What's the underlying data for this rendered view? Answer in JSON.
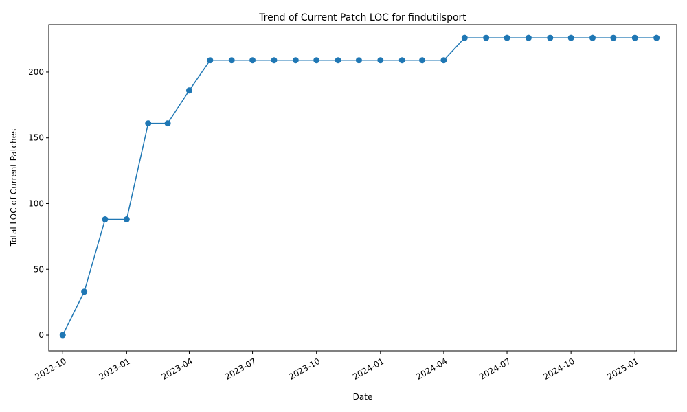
{
  "chart_data": {
    "type": "line",
    "title": "Trend of Current Patch LOC for findutilsport",
    "xlabel": "Date",
    "ylabel": "Total LOC of Current Patches",
    "x_ticks": [
      "2022-10",
      "2023-01",
      "2023-04",
      "2023-07",
      "2023-10",
      "2024-01",
      "2024-04",
      "2024-07",
      "2024-10",
      "2025-01"
    ],
    "y_ticks": [
      "0",
      "50",
      "100",
      "150",
      "200"
    ],
    "ylim": [
      -12,
      236
    ],
    "xlim": [
      "2022-09-11",
      "2025-03-02"
    ],
    "grid": false,
    "color": "#1f77b4",
    "series": [
      {
        "x": [
          "2022-10-01",
          "2022-11-01",
          "2022-12-01",
          "2023-01-01",
          "2023-02-01",
          "2023-03-01",
          "2023-04-01",
          "2023-05-01",
          "2023-06-01",
          "2023-07-01",
          "2023-08-01",
          "2023-09-01",
          "2023-10-01",
          "2023-11-01",
          "2023-12-01",
          "2024-01-01",
          "2024-02-01",
          "2024-03-01",
          "2024-04-01",
          "2024-05-01",
          "2024-06-01",
          "2024-07-01",
          "2024-08-01",
          "2024-09-01",
          "2024-10-01",
          "2024-11-01",
          "2024-12-01",
          "2025-01-01",
          "2025-02-01"
        ],
        "values": [
          0,
          33,
          88,
          88,
          161,
          161,
          186,
          209,
          209,
          209,
          209,
          209,
          209,
          209,
          209,
          209,
          209,
          209,
          209,
          226,
          226,
          226,
          226,
          226,
          226,
          226,
          226,
          226,
          226
        ]
      }
    ]
  }
}
